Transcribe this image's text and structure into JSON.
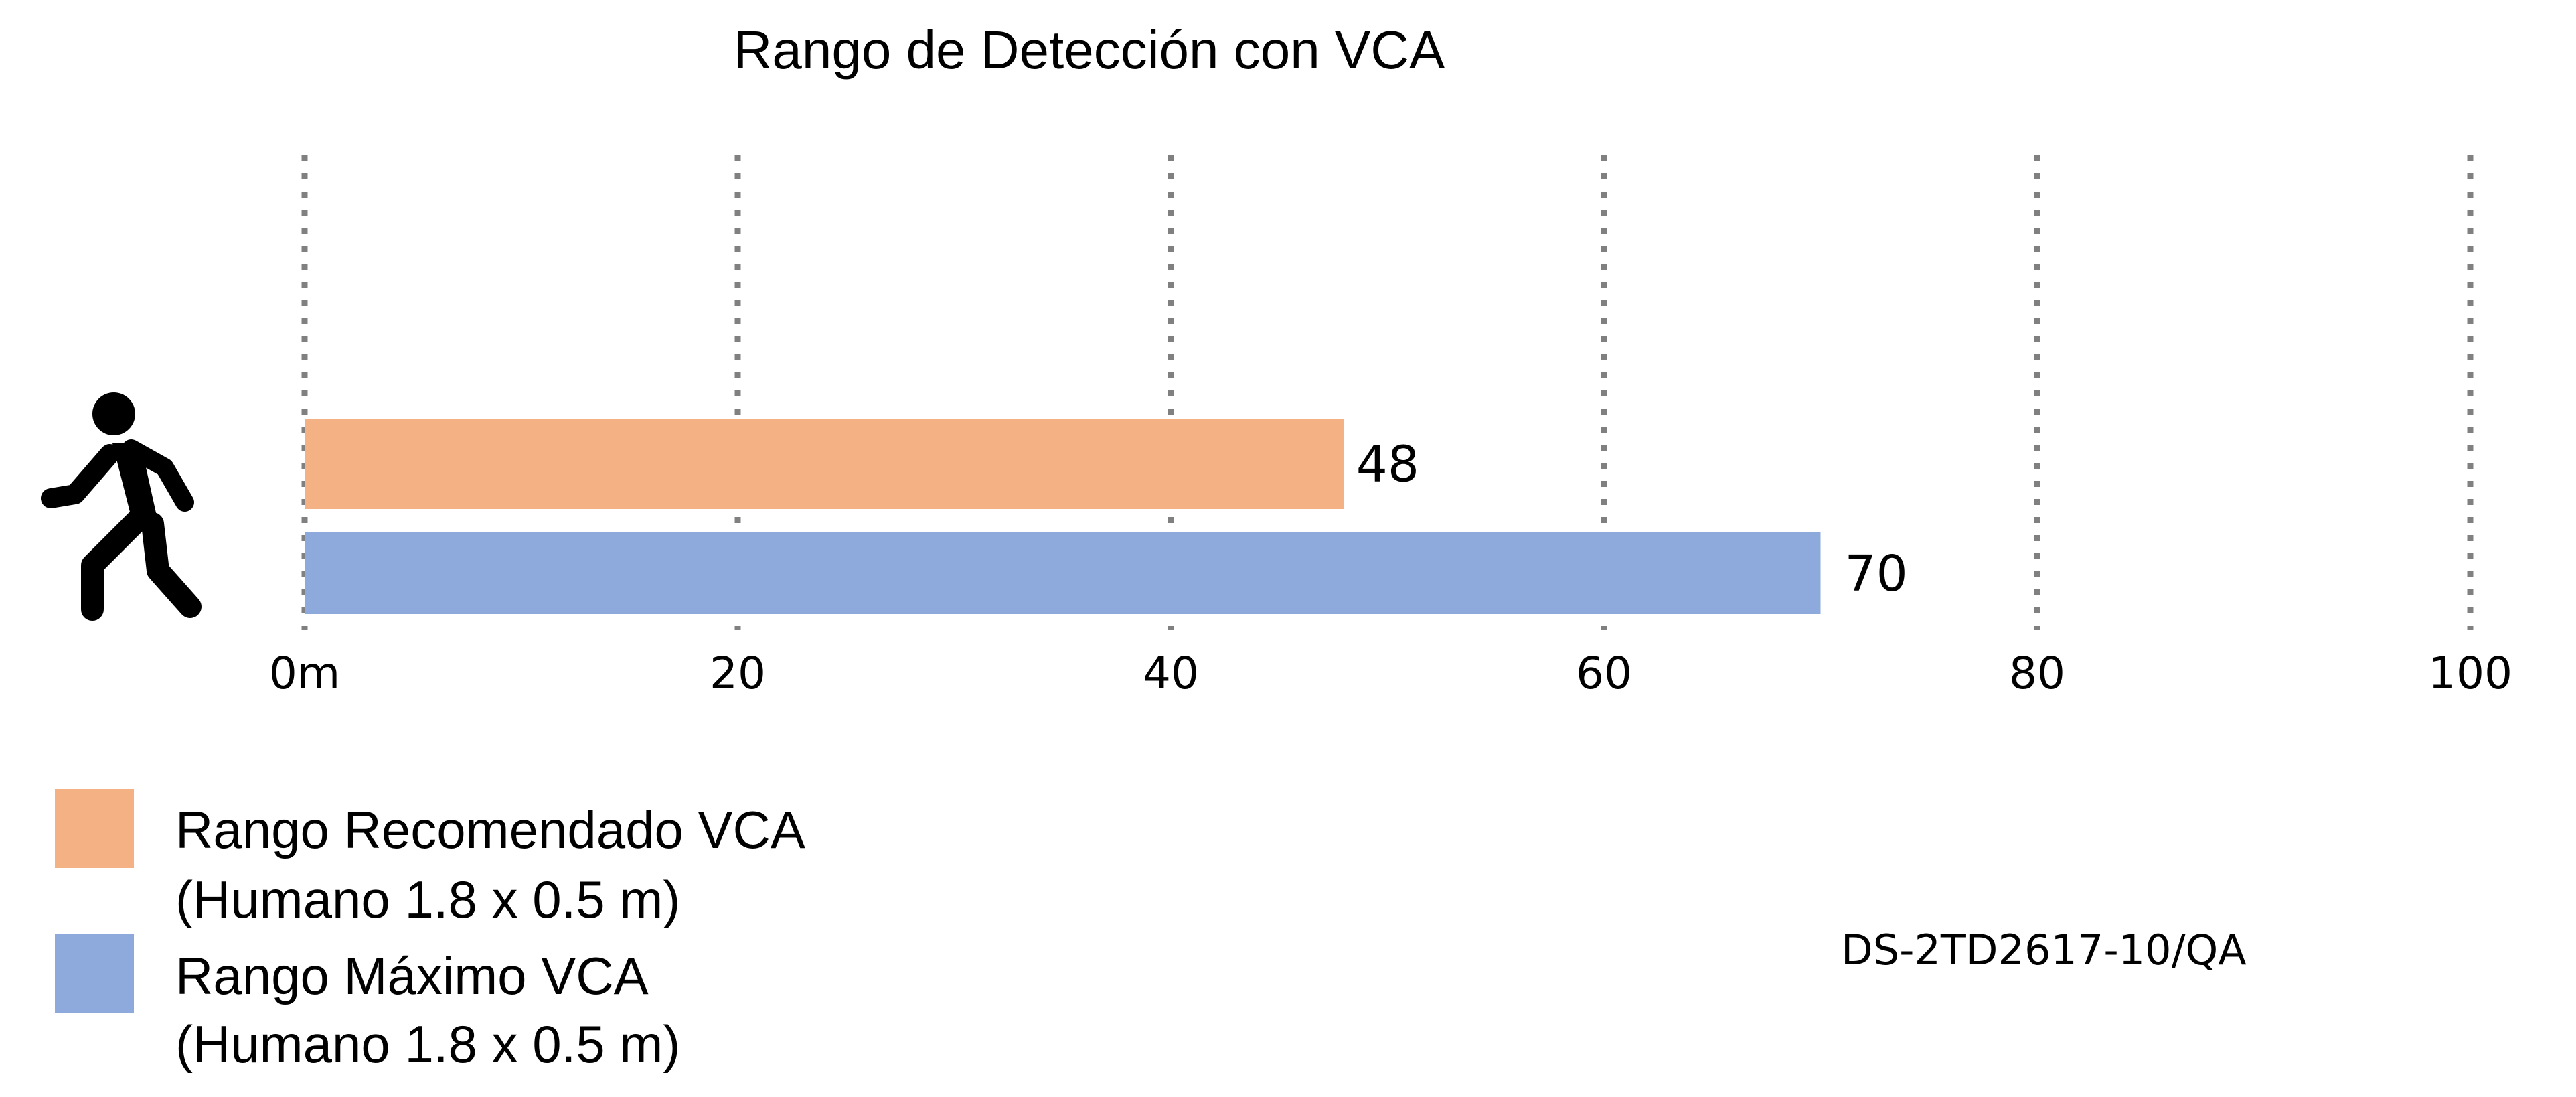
{
  "chart_data": {
    "type": "bar",
    "orientation": "horizontal",
    "title": "Rango de Detección con VCA",
    "xlim": [
      0,
      100
    ],
    "x_ticks": [
      0,
      20,
      40,
      60,
      80,
      100
    ],
    "x_tick_labels": [
      "0m",
      "20",
      "40",
      "60",
      "80",
      "100"
    ],
    "grid": "vertical dotted lines at ticks",
    "legend_position": "bottom-left",
    "series": [
      {
        "name_line1": "Rango Recomendado VCA",
        "name_line2": "(Humano 1.8 x 0.5 m)",
        "value": 48,
        "value_label": "48",
        "color": "#F4B183"
      },
      {
        "name_line1": "Rango Máximo VCA",
        "name_line2": "(Humano 1.8 x 0.5 m)",
        "value": 70,
        "value_label": "70",
        "color": "#8EA9DB"
      }
    ],
    "model_label": "DS-2TD2617-10/QA",
    "icon": "walking-person-icon"
  }
}
